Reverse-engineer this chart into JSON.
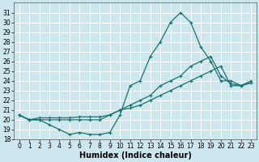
{
  "xlabel": "Humidex (Indice chaleur)",
  "background_color": "#cce8ee",
  "line_color": "#1a7070",
  "grid_color": "#ffffff",
  "x_values": [
    0,
    1,
    2,
    3,
    4,
    5,
    6,
    7,
    8,
    9,
    10,
    11,
    12,
    13,
    14,
    15,
    16,
    17,
    18,
    19,
    20,
    21,
    22,
    23
  ],
  "line_top": [
    20.5,
    20.0,
    20.0,
    19.5,
    19.0,
    18.5,
    18.7,
    18.5,
    18.5,
    18.7,
    20.5,
    23.5,
    24.0,
    26.5,
    28.0,
    30.0,
    31.0,
    30.0,
    27.5,
    26.0,
    24.0,
    24.0,
    23.5,
    24.0
  ],
  "line_diag": [
    20.5,
    20.0,
    20.2,
    20.2,
    20.2,
    20.2,
    20.3,
    20.3,
    20.3,
    20.5,
    21.0,
    21.2,
    21.5,
    22.0,
    22.5,
    23.0,
    23.5,
    24.0,
    24.5,
    25.0,
    25.5,
    23.5,
    23.5,
    23.8
  ],
  "line_mid": [
    20.5,
    20.0,
    20.0,
    20.0,
    20.0,
    20.0,
    20.0,
    20.0,
    20.0,
    20.5,
    21.0,
    21.5,
    22.0,
    22.5,
    23.5,
    24.0,
    24.5,
    25.5,
    26.0,
    26.5,
    24.5,
    23.7,
    23.5,
    23.8
  ],
  "ylim": [
    18,
    32
  ],
  "xlim": [
    -0.5,
    23.5
  ],
  "yticks": [
    18,
    19,
    20,
    21,
    22,
    23,
    24,
    25,
    26,
    27,
    28,
    29,
    30,
    31
  ],
  "xticks": [
    0,
    1,
    2,
    3,
    4,
    5,
    6,
    7,
    8,
    9,
    10,
    11,
    12,
    13,
    14,
    15,
    16,
    17,
    18,
    19,
    20,
    21,
    22,
    23
  ],
  "fontsize_ticks": 5.5,
  "fontsize_xlabel": 7.0,
  "linewidth": 0.9,
  "markersize": 2.5
}
